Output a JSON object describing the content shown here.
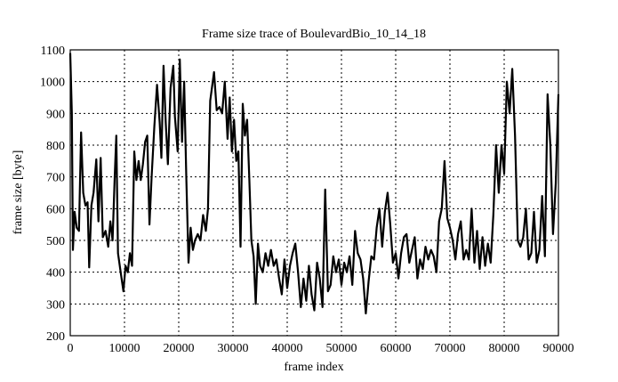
{
  "chart_data": {
    "type": "line",
    "title": "Frame size trace of BoulevardBio_10_14_18",
    "xlabel": "frame index",
    "ylabel": "frame size [byte]",
    "xlim": [
      0,
      90000
    ],
    "ylim": [
      200,
      1100
    ],
    "xticks": [
      0,
      10000,
      20000,
      30000,
      40000,
      50000,
      60000,
      70000,
      80000,
      90000
    ],
    "yticks": [
      200,
      300,
      400,
      500,
      600,
      700,
      800,
      900,
      1000,
      1100
    ],
    "grid": true,
    "line_color": "#000000",
    "x": [
      0,
      300,
      500,
      800,
      1200,
      1600,
      2000,
      2400,
      2800,
      3200,
      3500,
      3900,
      4300,
      4800,
      5200,
      5600,
      6000,
      6500,
      7000,
      7400,
      7800,
      8200,
      8500,
      8800,
      9300,
      9800,
      10200,
      10600,
      11000,
      11400,
      11800,
      12200,
      12600,
      13000,
      13400,
      13800,
      14200,
      14600,
      15000,
      15500,
      16000,
      16500,
      16800,
      17200,
      17600,
      18000,
      18500,
      19000,
      19300,
      19800,
      20200,
      20600,
      21000,
      21400,
      21800,
      22200,
      22600,
      23000,
      23500,
      24000,
      24500,
      25000,
      25400,
      25800,
      26500,
      27000,
      27500,
      28000,
      28500,
      29000,
      29400,
      29800,
      30200,
      30600,
      31000,
      31400,
      31800,
      32200,
      32600,
      33000,
      33400,
      33800,
      34200,
      34600,
      35000,
      35500,
      36000,
      36500,
      37000,
      37500,
      38000,
      38500,
      39000,
      39500,
      40000,
      40500,
      41000,
      41500,
      42000,
      42500,
      43000,
      43500,
      44000,
      44500,
      45000,
      45500,
      46000,
      46500,
      47000,
      47500,
      48000,
      48500,
      49000,
      49500,
      50000,
      50500,
      51000,
      51500,
      52000,
      52500,
      53000,
      53500,
      54000,
      54500,
      55000,
      55500,
      56000,
      56500,
      57000,
      57500,
      58000,
      58500,
      59000,
      59500,
      60000,
      60500,
      61000,
      61500,
      62000,
      62500,
      63000,
      63500,
      64000,
      64500,
      65000,
      65500,
      66000,
      66500,
      67000,
      67500,
      68000,
      68500,
      69000,
      69500,
      70000,
      70500,
      71000,
      71500,
      72000,
      72500,
      73000,
      73500,
      74000,
      74500,
      75000,
      75500,
      76000,
      76500,
      77000,
      77500,
      78000,
      78500,
      79000,
      79500,
      80000,
      80500,
      81000,
      81500,
      82000,
      82500,
      83000,
      83500,
      84000,
      84500,
      85000,
      85500,
      86000,
      86500,
      87000,
      87500,
      88000,
      88500,
      89000,
      89500,
      90000
    ],
    "y": [
      1090,
      900,
      470,
      590,
      540,
      530,
      840,
      650,
      610,
      620,
      415,
      610,
      650,
      755,
      560,
      760,
      510,
      530,
      480,
      560,
      500,
      700,
      830,
      460,
      400,
      340,
      420,
      400,
      460,
      420,
      780,
      690,
      750,
      690,
      740,
      810,
      830,
      550,
      700,
      860,
      990,
      870,
      760,
      1050,
      870,
      740,
      980,
      1050,
      890,
      780,
      1070,
      810,
      1000,
      700,
      430,
      540,
      470,
      500,
      520,
      500,
      580,
      530,
      600,
      940,
      1030,
      910,
      920,
      900,
      1000,
      820,
      950,
      780,
      880,
      750,
      780,
      480,
      930,
      830,
      880,
      700,
      500,
      450,
      300,
      490,
      420,
      400,
      460,
      420,
      470,
      420,
      440,
      380,
      330,
      440,
      350,
      420,
      460,
      490,
      400,
      290,
      380,
      310,
      420,
      330,
      280,
      430,
      380,
      290,
      660,
      340,
      360,
      450,
      400,
      440,
      360,
      430,
      400,
      450,
      360,
      530,
      460,
      440,
      380,
      270,
      370,
      450,
      440,
      540,
      600,
      480,
      590,
      650,
      550,
      430,
      460,
      380,
      460,
      510,
      520,
      430,
      470,
      510,
      380,
      440,
      410,
      480,
      440,
      470,
      450,
      400,
      560,
      600,
      750,
      570,
      540,
      500,
      440,
      520,
      560,
      440,
      470,
      440,
      600,
      430,
      530,
      410,
      510,
      420,
      490,
      430,
      580,
      800,
      650,
      800,
      710,
      1000,
      900,
      1040,
      830,
      500,
      480,
      510,
      600,
      440,
      460,
      590,
      430,
      470,
      640,
      450,
      960,
      800,
      520,
      680,
      960
    ]
  }
}
